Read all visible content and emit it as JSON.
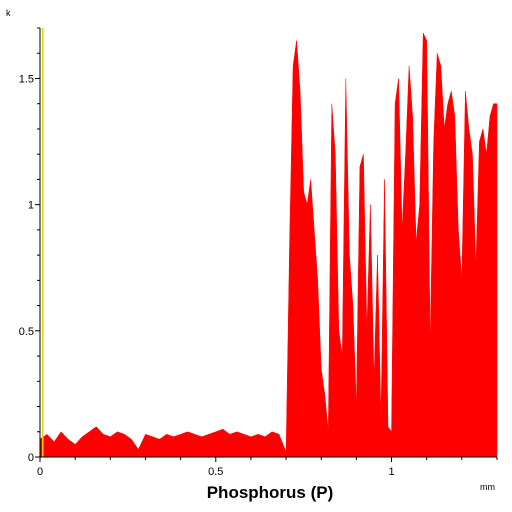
{
  "chart_data": {
    "type": "area",
    "title": "Phosphorus (P)",
    "x_unit": "mm",
    "y_unit": "k",
    "xlim": [
      0,
      1.3
    ],
    "ylim": [
      0,
      1.7
    ],
    "x_ticks": [
      {
        "value": 0,
        "label": "0"
      },
      {
        "value": 0.5,
        "label": "0.5"
      },
      {
        "value": 1,
        "label": "1"
      }
    ],
    "y_ticks": [
      {
        "value": 0,
        "label": "0"
      },
      {
        "value": 0.5,
        "label": "0.5"
      },
      {
        "value": 1,
        "label": "1"
      },
      {
        "value": 1.5,
        "label": "1.5"
      }
    ],
    "marker_x": 0.008,
    "colors": {
      "fill": "#ff0000",
      "marker": "#e6d200",
      "axis": "#000000"
    },
    "series": [
      {
        "x": [
          0,
          0.02,
          0.04,
          0.06,
          0.08,
          0.1,
          0.12,
          0.14,
          0.16,
          0.18,
          0.2,
          0.22,
          0.24,
          0.26,
          0.28,
          0.3,
          0.32,
          0.34,
          0.36,
          0.38,
          0.4,
          0.42,
          0.44,
          0.46,
          0.48,
          0.5,
          0.52,
          0.54,
          0.56,
          0.58,
          0.6,
          0.62,
          0.64,
          0.66,
          0.68,
          0.7,
          0.71,
          0.72,
          0.73,
          0.74,
          0.75,
          0.76,
          0.77,
          0.78,
          0.79,
          0.8,
          0.81,
          0.82,
          0.83,
          0.84,
          0.85,
          0.86,
          0.87,
          0.88,
          0.89,
          0.9,
          0.91,
          0.92,
          0.93,
          0.94,
          0.95,
          0.96,
          0.97,
          0.98,
          0.99,
          1.0,
          1.01,
          1.02,
          1.03,
          1.04,
          1.05,
          1.06,
          1.07,
          1.08,
          1.09,
          1.1,
          1.11,
          1.12,
          1.13,
          1.14,
          1.15,
          1.16,
          1.17,
          1.18,
          1.19,
          1.2,
          1.21,
          1.22,
          1.23,
          1.24,
          1.25,
          1.26,
          1.27,
          1.28,
          1.29,
          1.3
        ],
        "values": [
          0.07,
          0.09,
          0.06,
          0.1,
          0.07,
          0.05,
          0.08,
          0.1,
          0.12,
          0.09,
          0.08,
          0.1,
          0.09,
          0.07,
          0.03,
          0.09,
          0.08,
          0.07,
          0.09,
          0.08,
          0.09,
          0.1,
          0.09,
          0.08,
          0.09,
          0.1,
          0.11,
          0.09,
          0.1,
          0.09,
          0.08,
          0.09,
          0.08,
          0.1,
          0.09,
          0.02,
          0.85,
          1.55,
          1.65,
          1.45,
          1.05,
          1.0,
          1.1,
          0.9,
          0.7,
          0.35,
          0.25,
          0.1,
          1.4,
          1.2,
          0.5,
          0.4,
          1.5,
          0.8,
          0.6,
          0.2,
          1.15,
          1.2,
          0.5,
          1.0,
          0.3,
          0.8,
          0.15,
          1.1,
          0.12,
          0.1,
          1.4,
          1.5,
          0.9,
          1.2,
          1.55,
          1.35,
          0.85,
          1.0,
          1.68,
          1.65,
          0.45,
          1.25,
          1.6,
          1.55,
          1.3,
          1.4,
          1.45,
          1.35,
          0.9,
          0.7,
          1.45,
          1.3,
          1.2,
          0.75,
          1.25,
          1.3,
          1.2,
          1.35,
          1.4,
          1.4
        ]
      }
    ]
  }
}
